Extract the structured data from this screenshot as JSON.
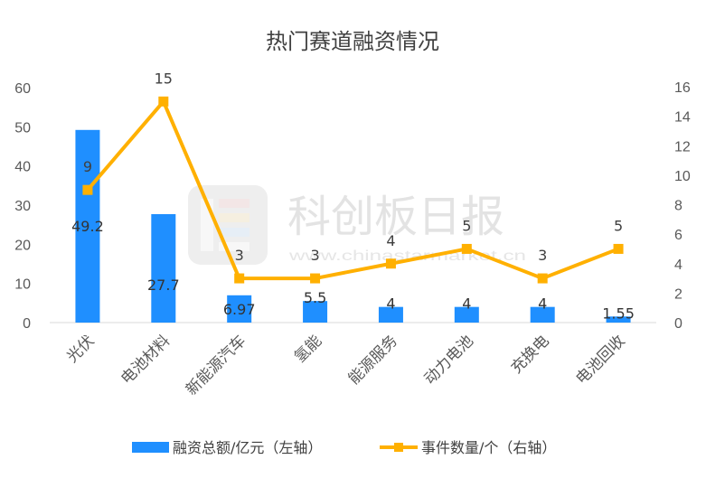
{
  "chart_data": {
    "type": "bar+line",
    "title": "热门赛道融资情况",
    "categories": [
      "光伏",
      "电池材料",
      "新能源汽车",
      "氢能",
      "能源服务",
      "动力电池",
      "充换电",
      "电池回收"
    ],
    "series": [
      {
        "name": "融资总额/亿元（左轴）",
        "type": "bar",
        "axis": "left",
        "color": "#1f8fff",
        "values": [
          49.2,
          27.7,
          6.97,
          5.5,
          4,
          4,
          4,
          1.55
        ],
        "labels": [
          "49.2",
          "27.7",
          "6.97",
          "5.5",
          "4",
          "4",
          "4",
          "1.55"
        ]
      },
      {
        "name": "事件数量/个（右轴）",
        "type": "line",
        "axis": "right",
        "color": "#ffb000",
        "values": [
          9,
          15,
          3,
          3,
          4,
          5,
          3,
          5
        ],
        "labels": [
          "9",
          "15",
          "3",
          "3",
          "4",
          "5",
          "3",
          "5"
        ]
      }
    ],
    "y_left": {
      "min": 0,
      "max": 60,
      "ticks": [
        "0",
        "10",
        "20",
        "30",
        "40",
        "50",
        "60"
      ]
    },
    "y_right": {
      "min": 0,
      "max": 16,
      "ticks": [
        "0",
        "2",
        "4",
        "6",
        "8",
        "10",
        "12",
        "14",
        "16"
      ]
    },
    "grid": false,
    "legend_position": "bottom"
  },
  "watermark": {
    "text": "科创板日报",
    "url": "www.chinastarmarket.cn"
  }
}
